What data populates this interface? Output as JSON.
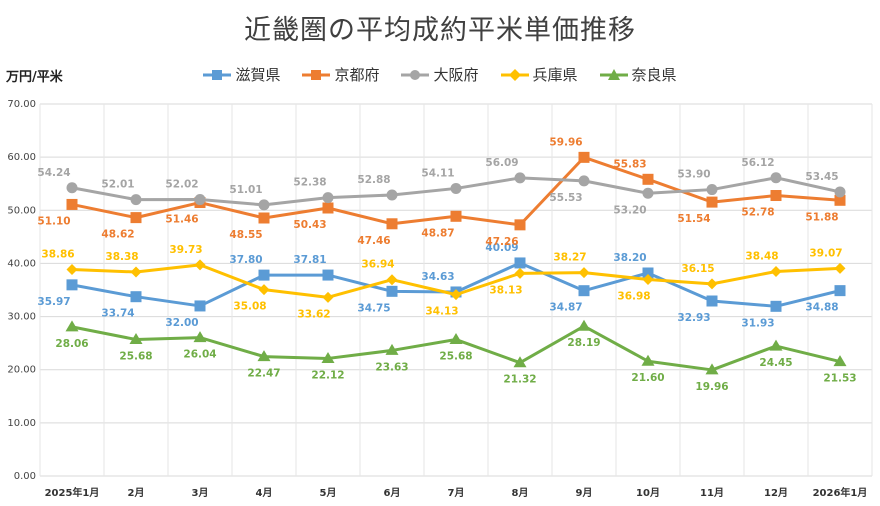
{
  "chart_data": {
    "type": "line",
    "title": "近畿圏の平均成約平米単価推移",
    "ylabel": "万円/平米",
    "xlabel": "",
    "ylim": [
      0,
      70
    ],
    "yticks": [
      "0.00",
      "10.00",
      "20.00",
      "30.00",
      "40.00",
      "50.00",
      "60.00",
      "70.00"
    ],
    "categories": [
      "2025年1月",
      "2月",
      "3月",
      "4月",
      "5月",
      "6月",
      "7月",
      "8月",
      "9月",
      "10月",
      "11月",
      "12月",
      "2026年1月"
    ],
    "grid": true,
    "legend_position": "top",
    "series": [
      {
        "name": "滋賀県",
        "color": "#5b9bd5",
        "marker": "square",
        "values": [
          35.97,
          33.74,
          32.0,
          37.8,
          37.81,
          34.75,
          34.63,
          40.09,
          34.87,
          38.2,
          32.93,
          31.93,
          34.88
        ],
        "labels": [
          "35.97",
          "33.74",
          "32.00",
          "37.80",
          "37.81",
          "34.75",
          "34.63",
          "40.09",
          "34.87",
          "38.20",
          "32.93",
          "31.93",
          "34.88"
        ]
      },
      {
        "name": "京都府",
        "color": "#ed7d31",
        "marker": "square",
        "values": [
          51.1,
          48.62,
          51.46,
          48.55,
          50.43,
          47.46,
          48.87,
          47.26,
          59.96,
          55.83,
          51.54,
          52.78,
          51.88
        ],
        "labels": [
          "51.10",
          "48.62",
          "51.46",
          "48.55",
          "50.43",
          "47.46",
          "48.87",
          "47.26",
          "59.96",
          "55.83",
          "51.54",
          "52.78",
          "51.88"
        ]
      },
      {
        "name": "大阪府",
        "color": "#a5a5a5",
        "marker": "circle",
        "values": [
          54.24,
          52.01,
          52.02,
          51.01,
          52.38,
          52.88,
          54.11,
          56.09,
          55.53,
          53.2,
          53.9,
          56.12,
          53.45
        ],
        "labels": [
          "54.24",
          "52.01",
          "52.02",
          "51.01",
          "52.38",
          "52.88",
          "54.11",
          "56.09",
          "55.53",
          "53.20",
          "53.90",
          "56.12",
          "53.45"
        ]
      },
      {
        "name": "兵庫県",
        "color": "#ffc000",
        "marker": "diamond",
        "values": [
          38.86,
          38.38,
          39.73,
          35.08,
          33.62,
          36.94,
          34.13,
          38.13,
          38.27,
          36.98,
          36.15,
          38.48,
          39.07
        ],
        "labels": [
          "38.86",
          "38.38",
          "39.73",
          "35.08",
          "33.62",
          "36.94",
          "34.13",
          "38.13",
          "38.27",
          "36.98",
          "36.15",
          "38.48",
          "39.07"
        ]
      },
      {
        "name": "奈良県",
        "color": "#70ad47",
        "marker": "triangle",
        "values": [
          28.06,
          25.68,
          26.04,
          22.47,
          22.12,
          23.63,
          25.68,
          21.32,
          28.19,
          21.6,
          19.96,
          24.45,
          21.53
        ],
        "labels": [
          "28.06",
          "25.68",
          "26.04",
          "22.47",
          "22.12",
          "23.63",
          "25.68",
          "21.32",
          "28.19",
          "21.60",
          "19.96",
          "24.45",
          "21.53"
        ]
      }
    ]
  }
}
